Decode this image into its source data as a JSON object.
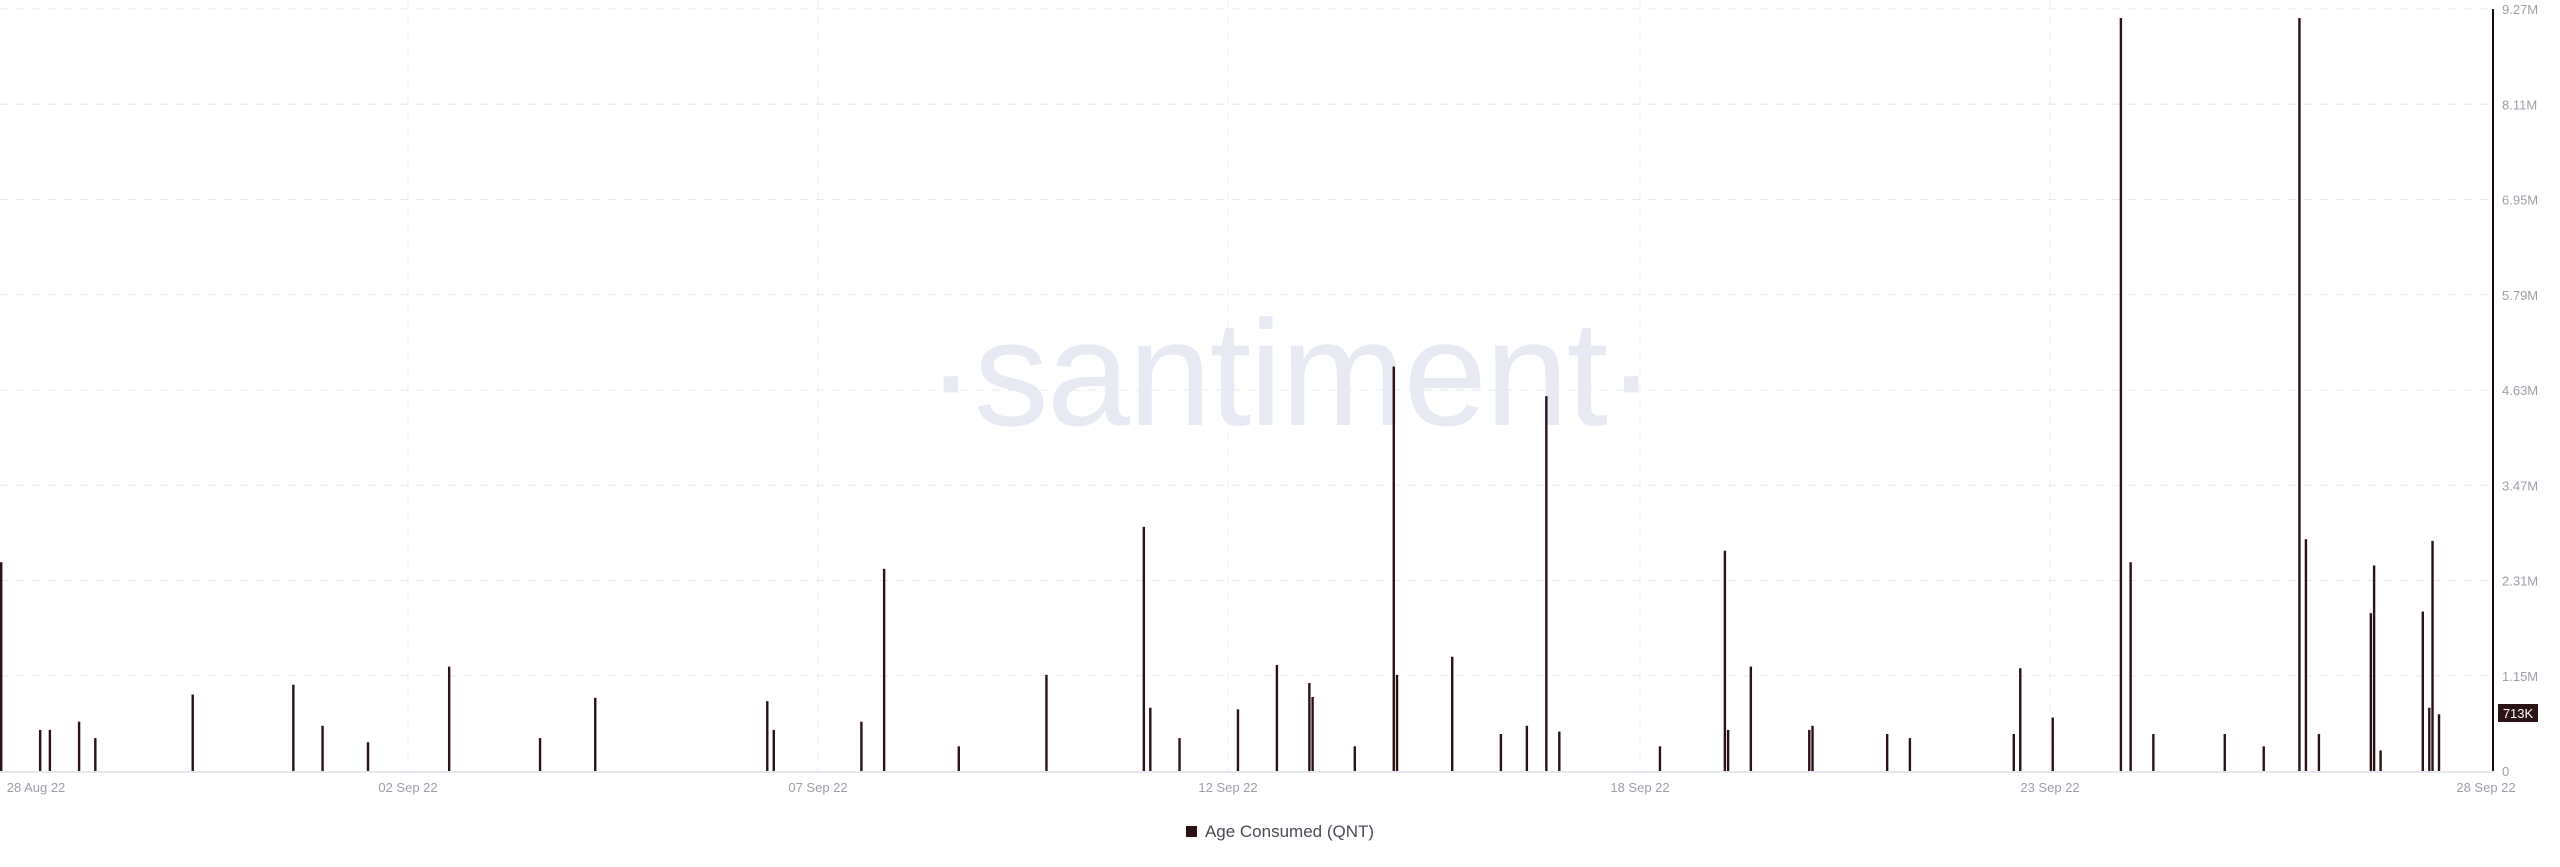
{
  "watermark": "·santiment·",
  "legend": {
    "label": "Age Consumed (QNT)",
    "color": "#2a1215"
  },
  "chart_data": {
    "type": "bar",
    "title": "",
    "xlabel": "",
    "ylabel": "",
    "series": [
      {
        "name": "Age Consumed (QNT)",
        "color": "#2a1215",
        "points": [
          {
            "t": "2022-08-27T12:00",
            "v": 2540000
          },
          {
            "t": "2022-08-28T00:00",
            "v": 500000
          },
          {
            "t": "2022-08-28T03:00",
            "v": 500000
          },
          {
            "t": "2022-08-28T12:00",
            "v": 600000
          },
          {
            "t": "2022-08-28T17:00",
            "v": 400000
          },
          {
            "t": "2022-08-29T23:00",
            "v": 930000
          },
          {
            "t": "2022-08-31T06:00",
            "v": 1050000
          },
          {
            "t": "2022-08-31T15:00",
            "v": 550000
          },
          {
            "t": "2022-09-01T05:00",
            "v": 350000
          },
          {
            "t": "2022-09-02T06:00",
            "v": 1270000
          },
          {
            "t": "2022-09-03T10:00",
            "v": 400000
          },
          {
            "t": "2022-09-04T03:00",
            "v": 890000
          },
          {
            "t": "2022-09-06T08:00",
            "v": 850000
          },
          {
            "t": "2022-09-06T10:00",
            "v": 500000
          },
          {
            "t": "2022-09-07T13:00",
            "v": 600000
          },
          {
            "t": "2022-09-07T20:00",
            "v": 2460000
          },
          {
            "t": "2022-09-08T19:00",
            "v": 300000
          },
          {
            "t": "2022-09-09T22:00",
            "v": 1170000
          },
          {
            "t": "2022-09-11T04:00",
            "v": 2970000
          },
          {
            "t": "2022-09-11T06:00",
            "v": 770000
          },
          {
            "t": "2022-09-11T15:00",
            "v": 400000
          },
          {
            "t": "2022-09-12T09:00",
            "v": 750000
          },
          {
            "t": "2022-09-12T21:00",
            "v": 1290000
          },
          {
            "t": "2022-09-13T07:00",
            "v": 1070000
          },
          {
            "t": "2022-09-13T08:00",
            "v": 900000
          },
          {
            "t": "2022-09-13T21:00",
            "v": 300000
          },
          {
            "t": "2022-09-14T09:00",
            "v": 4920000
          },
          {
            "t": "2022-09-14T10:00",
            "v": 1170000
          },
          {
            "t": "2022-09-15T03:00",
            "v": 1390000
          },
          {
            "t": "2022-09-15T18:00",
            "v": 450000
          },
          {
            "t": "2022-09-16T02:00",
            "v": 550000
          },
          {
            "t": "2022-09-16T08:00",
            "v": 4560000
          },
          {
            "t": "2022-09-16T12:00",
            "v": 480000
          },
          {
            "t": "2022-09-17T19:00",
            "v": 300000
          },
          {
            "t": "2022-09-18T15:00",
            "v": 2680000
          },
          {
            "t": "2022-09-18T16:00",
            "v": 500000
          },
          {
            "t": "2022-09-18T23:00",
            "v": 1270000
          },
          {
            "t": "2022-09-19T17:00",
            "v": 500000
          },
          {
            "t": "2022-09-19T18:00",
            "v": 550000
          },
          {
            "t": "2022-09-20T17:00",
            "v": 450000
          },
          {
            "t": "2022-09-21T00:00",
            "v": 400000
          },
          {
            "t": "2022-09-22T08:00",
            "v": 450000
          },
          {
            "t": "2022-09-22T10:00",
            "v": 1250000
          },
          {
            "t": "2022-09-22T20:00",
            "v": 650000
          },
          {
            "t": "2022-09-23T17:00",
            "v": 9160000
          },
          {
            "t": "2022-09-23T20:00",
            "v": 2540000
          },
          {
            "t": "2022-09-24T03:00",
            "v": 450000
          },
          {
            "t": "2022-09-25T01:00",
            "v": 450000
          },
          {
            "t": "2022-09-25T13:00",
            "v": 300000
          },
          {
            "t": "2022-09-26T00:00",
            "v": 9160000
          },
          {
            "t": "2022-09-26T02:00",
            "v": 2820000
          },
          {
            "t": "2022-09-26T06:00",
            "v": 450000
          },
          {
            "t": "2022-09-26T22:00",
            "v": 1920000
          },
          {
            "t": "2022-09-26T23:00",
            "v": 2500000
          },
          {
            "t": "2022-09-27T01:00",
            "v": 250000
          },
          {
            "t": "2022-09-27T14:00",
            "v": 1940000
          },
          {
            "t": "2022-09-27T16:00",
            "v": 770000
          },
          {
            "t": "2022-09-27T17:00",
            "v": 2800000
          },
          {
            "t": "2022-09-27T19:00",
            "v": 690000
          }
        ]
      }
    ],
    "xlim": [
      "2022-08-27T12:00",
      "2022-09-28T12:00"
    ],
    "ylim": [
      0,
      9270000
    ],
    "x_tick_labels": [
      "28 Aug 22",
      "02 Sep 22",
      "07 Sep 22",
      "12 Sep 22",
      "18 Sep 22",
      "23 Sep 22",
      "28 Sep 22"
    ],
    "y_tick_labels": [
      "0",
      "1.15M",
      "2.31M",
      "3.47M",
      "4.63M",
      "5.79M",
      "6.95M",
      "8.11M",
      "9.27M"
    ],
    "y_axis_position": "right",
    "grid": true,
    "legend_position": "bottom",
    "current_value_label": "713K",
    "current_value": 713000
  }
}
